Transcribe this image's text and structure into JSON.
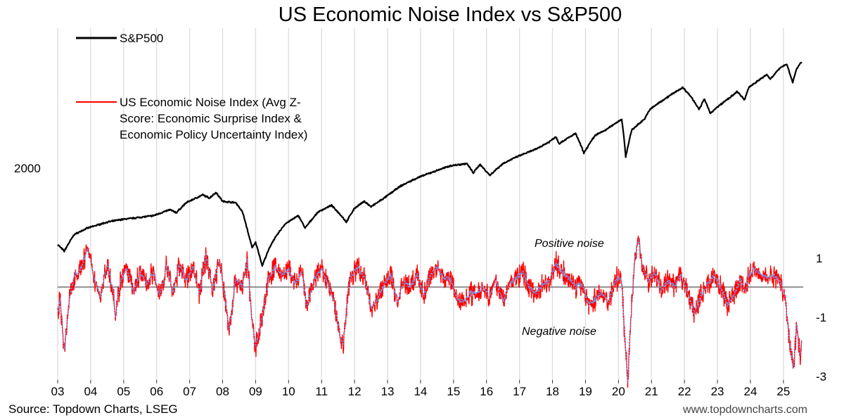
{
  "chart_data": {
    "type": "line",
    "title": "US Economic Noise Index vs S&P500",
    "x_axis": {
      "tick_labels": [
        "03",
        "04",
        "05",
        "06",
        "07",
        "08",
        "09",
        "10",
        "11",
        "12",
        "13",
        "14",
        "15",
        "16",
        "17",
        "18",
        "19",
        "20",
        "21",
        "22",
        "23",
        "24",
        "25"
      ],
      "range": [
        2003.0,
        2025.6
      ]
    },
    "left_axis": {
      "tick_labels": [
        "2000"
      ],
      "scale": "log"
    },
    "right_axis": {
      "tick_labels": [
        "1",
        "-1",
        "-3"
      ],
      "range": [
        -3,
        2.2
      ]
    },
    "legend": {
      "placement": "top-left",
      "entries": [
        {
          "label": "S&P500",
          "color": "#000000"
        },
        {
          "label_lines": [
            "US Economic Noise Index (Avg Z-",
            "Score: Economic Surprise Index &",
            "Economic Policy Uncertainty Index)"
          ],
          "color": "#ff0000"
        }
      ]
    },
    "annotations": [
      "Positive noise",
      "Negative noise"
    ],
    "series": [
      {
        "name": "S&P500",
        "axis": "left",
        "color": "#000000",
        "points": [
          [
            2003.0,
            880
          ],
          [
            2003.2,
            820
          ],
          [
            2003.5,
            980
          ],
          [
            2003.9,
            1050
          ],
          [
            2004.5,
            1120
          ],
          [
            2004.9,
            1150
          ],
          [
            2005.3,
            1170
          ],
          [
            2005.9,
            1200
          ],
          [
            2006.4,
            1280
          ],
          [
            2006.6,
            1240
          ],
          [
            2006.9,
            1380
          ],
          [
            2007.4,
            1500
          ],
          [
            2007.6,
            1450
          ],
          [
            2007.8,
            1540
          ],
          [
            2008.0,
            1400
          ],
          [
            2008.4,
            1380
          ],
          [
            2008.6,
            1250
          ],
          [
            2008.8,
            960
          ],
          [
            2008.9,
            850
          ],
          [
            2009.0,
            900
          ],
          [
            2009.2,
            700
          ],
          [
            2009.5,
            900
          ],
          [
            2009.9,
            1100
          ],
          [
            2010.3,
            1200
          ],
          [
            2010.5,
            1050
          ],
          [
            2010.9,
            1250
          ],
          [
            2011.3,
            1340
          ],
          [
            2011.6,
            1200
          ],
          [
            2011.75,
            1120
          ],
          [
            2012.0,
            1300
          ],
          [
            2012.3,
            1400
          ],
          [
            2012.5,
            1320
          ],
          [
            2012.9,
            1450
          ],
          [
            2013.4,
            1650
          ],
          [
            2013.9,
            1800
          ],
          [
            2014.5,
            1950
          ],
          [
            2014.9,
            2050
          ],
          [
            2015.4,
            2100
          ],
          [
            2015.6,
            1900
          ],
          [
            2015.8,
            2080
          ],
          [
            2016.1,
            1850
          ],
          [
            2016.5,
            2100
          ],
          [
            2016.9,
            2250
          ],
          [
            2017.5,
            2450
          ],
          [
            2017.9,
            2650
          ],
          [
            2018.1,
            2800
          ],
          [
            2018.2,
            2600
          ],
          [
            2018.7,
            2900
          ],
          [
            2018.95,
            2350
          ],
          [
            2019.3,
            2850
          ],
          [
            2019.6,
            3000
          ],
          [
            2019.9,
            3230
          ],
          [
            2020.1,
            3380
          ],
          [
            2020.22,
            2250
          ],
          [
            2020.4,
            3000
          ],
          [
            2020.8,
            3400
          ],
          [
            2020.95,
            3750
          ],
          [
            2021.5,
            4300
          ],
          [
            2021.95,
            4750
          ],
          [
            2022.2,
            4300
          ],
          [
            2022.45,
            3750
          ],
          [
            2022.6,
            4200
          ],
          [
            2022.78,
            3600
          ],
          [
            2023.0,
            3850
          ],
          [
            2023.5,
            4400
          ],
          [
            2023.6,
            4550
          ],
          [
            2023.82,
            4150
          ],
          [
            2023.95,
            4750
          ],
          [
            2024.5,
            5450
          ],
          [
            2024.6,
            5200
          ],
          [
            2024.95,
            5950
          ],
          [
            2025.1,
            6100
          ],
          [
            2025.28,
            5000
          ],
          [
            2025.4,
            5800
          ],
          [
            2025.55,
            6250
          ]
        ]
      },
      {
        "name": "US Economic Noise Index (Avg Z-Score: Economic Surprise Index & Economic Policy Uncertainty Index)",
        "axis": "right",
        "color": "#ff0000",
        "smoothed_overlay_color": "#7f8fe0",
        "points": [
          [
            2003.0,
            -0.9
          ],
          [
            2003.08,
            -0.4
          ],
          [
            2003.2,
            -2.2
          ],
          [
            2003.35,
            -0.5
          ],
          [
            2003.5,
            0.4
          ],
          [
            2003.7,
            0.6
          ],
          [
            2003.9,
            1.3
          ],
          [
            2004.1,
            0.3
          ],
          [
            2004.3,
            -0.3
          ],
          [
            2004.5,
            0.8
          ],
          [
            2004.7,
            -0.2
          ],
          [
            2004.75,
            -1.0
          ],
          [
            2004.9,
            0.2
          ],
          [
            2005.1,
            0.6
          ],
          [
            2005.3,
            -0.2
          ],
          [
            2005.5,
            0.5
          ],
          [
            2005.7,
            0.1
          ],
          [
            2005.9,
            0.5
          ],
          [
            2006.1,
            -0.3
          ],
          [
            2006.3,
            0.7
          ],
          [
            2006.5,
            -0.2
          ],
          [
            2006.7,
            0.8
          ],
          [
            2006.9,
            0.2
          ],
          [
            2007.1,
            0.7
          ],
          [
            2007.3,
            -0.2
          ],
          [
            2007.5,
            1.1
          ],
          [
            2007.7,
            -0.1
          ],
          [
            2007.9,
            0.9
          ],
          [
            2008.1,
            -0.6
          ],
          [
            2008.2,
            -1.4
          ],
          [
            2008.4,
            0.3
          ],
          [
            2008.6,
            0.0
          ],
          [
            2008.75,
            0.9
          ],
          [
            2008.9,
            -1.3
          ],
          [
            2009.0,
            -2.0
          ],
          [
            2009.2,
            -1.0
          ],
          [
            2009.4,
            0.3
          ],
          [
            2009.6,
            0.7
          ],
          [
            2009.8,
            0.4
          ],
          [
            2010.0,
            0.6
          ],
          [
            2010.2,
            0.1
          ],
          [
            2010.4,
            0.5
          ],
          [
            2010.55,
            -0.7
          ],
          [
            2010.8,
            0.3
          ],
          [
            2011.0,
            0.6
          ],
          [
            2011.2,
            0.1
          ],
          [
            2011.4,
            -0.6
          ],
          [
            2011.55,
            -1.6
          ],
          [
            2011.65,
            -2.0
          ],
          [
            2011.85,
            0.3
          ],
          [
            2012.1,
            0.7
          ],
          [
            2012.3,
            0.3
          ],
          [
            2012.5,
            -0.7
          ],
          [
            2012.7,
            -0.4
          ],
          [
            2012.9,
            0.1
          ],
          [
            2013.1,
            0.4
          ],
          [
            2013.3,
            -0.5
          ],
          [
            2013.5,
            0.2
          ],
          [
            2013.7,
            0.0
          ],
          [
            2013.9,
            0.4
          ],
          [
            2014.1,
            -0.3
          ],
          [
            2014.3,
            0.4
          ],
          [
            2014.5,
            0.7
          ],
          [
            2014.7,
            0.3
          ],
          [
            2014.9,
            0.3
          ],
          [
            2015.1,
            -0.4
          ],
          [
            2015.3,
            -0.5
          ],
          [
            2015.5,
            -0.2
          ],
          [
            2015.7,
            -0.2
          ],
          [
            2015.9,
            0.0
          ],
          [
            2016.1,
            -0.3
          ],
          [
            2016.3,
            0.2
          ],
          [
            2016.5,
            -0.5
          ],
          [
            2016.7,
            0.1
          ],
          [
            2016.9,
            0.3
          ],
          [
            2017.1,
            0.5
          ],
          [
            2017.3,
            0.0
          ],
          [
            2017.5,
            -0.2
          ],
          [
            2017.7,
            0.1
          ],
          [
            2017.9,
            0.2
          ],
          [
            2018.1,
            0.8
          ],
          [
            2018.3,
            0.5
          ],
          [
            2018.5,
            0.3
          ],
          [
            2018.7,
            0.0
          ],
          [
            2018.9,
            0.1
          ],
          [
            2019.1,
            -0.6
          ],
          [
            2019.3,
            -0.4
          ],
          [
            2019.5,
            -0.2
          ],
          [
            2019.7,
            -0.5
          ],
          [
            2019.9,
            0.2
          ],
          [
            2020.0,
            0.3
          ],
          [
            2020.1,
            0.2
          ],
          [
            2020.18,
            -1.5
          ],
          [
            2020.28,
            -3.2
          ],
          [
            2020.38,
            -1.0
          ],
          [
            2020.5,
            1.0
          ],
          [
            2020.62,
            1.6
          ],
          [
            2020.75,
            0.6
          ],
          [
            2020.9,
            0.2
          ],
          [
            2021.1,
            0.5
          ],
          [
            2021.3,
            -0.1
          ],
          [
            2021.5,
            0.2
          ],
          [
            2021.7,
            0.0
          ],
          [
            2021.9,
            0.4
          ],
          [
            2022.1,
            -0.2
          ],
          [
            2022.3,
            -0.9
          ],
          [
            2022.5,
            -0.3
          ],
          [
            2022.7,
            0.1
          ],
          [
            2022.9,
            0.4
          ],
          [
            2023.1,
            0.0
          ],
          [
            2023.3,
            -0.6
          ],
          [
            2023.5,
            -0.3
          ],
          [
            2023.7,
            0.3
          ],
          [
            2023.85,
            -0.2
          ],
          [
            2023.95,
            0.4
          ],
          [
            2024.1,
            0.6
          ],
          [
            2024.3,
            0.5
          ],
          [
            2024.5,
            0.3
          ],
          [
            2024.7,
            0.4
          ],
          [
            2024.9,
            0.2
          ],
          [
            2025.05,
            -0.3
          ],
          [
            2025.15,
            -1.5
          ],
          [
            2025.3,
            -2.8
          ],
          [
            2025.4,
            -1.2
          ],
          [
            2025.5,
            -2.3
          ],
          [
            2025.55,
            -1.8
          ]
        ]
      }
    ]
  },
  "footer": {
    "source": "Source: Topdown Charts, LSEG",
    "website": "www.topdowncharts.com"
  }
}
